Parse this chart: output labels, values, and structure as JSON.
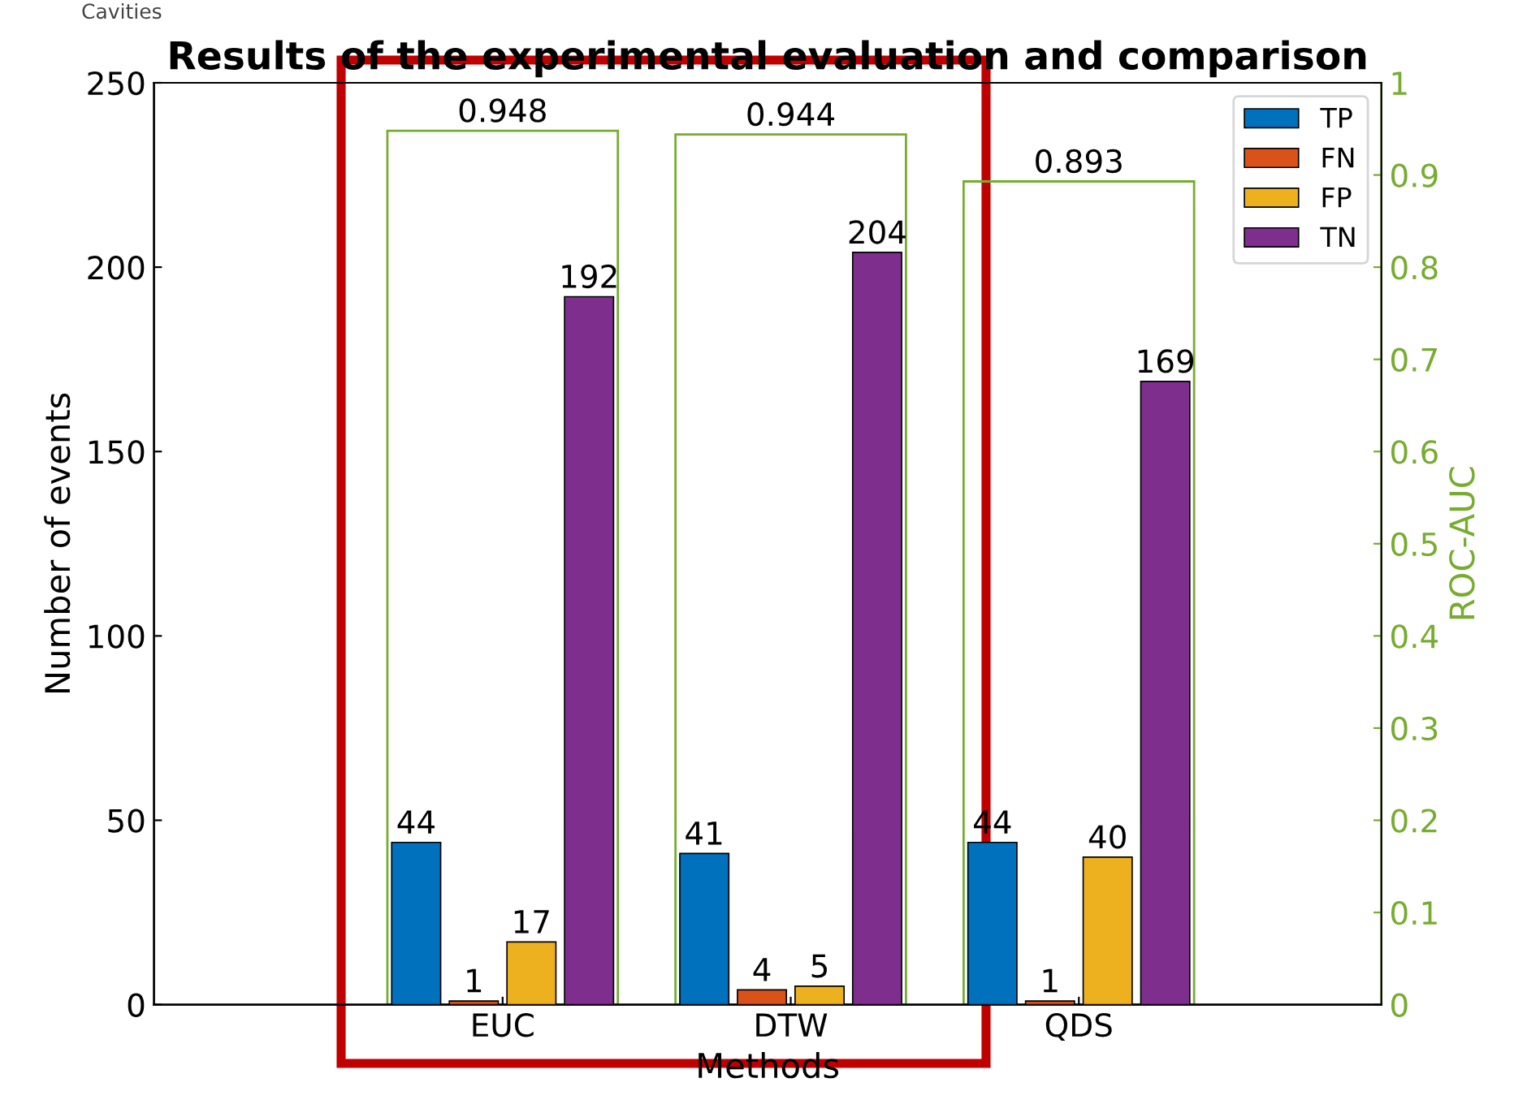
{
  "chart_data": {
    "type": "bar",
    "title": "Results of the experimental evaluation and comparison",
    "xlabel": "Methods",
    "ylabel": "Number of events",
    "y2label": "ROC-AUC",
    "annotations": [
      "Cavities"
    ],
    "categories": [
      "EUC",
      "DTW",
      "QDS"
    ],
    "series": [
      {
        "name": "TP",
        "color": "#0072bd",
        "values": [
          44,
          41,
          44
        ]
      },
      {
        "name": "FN",
        "color": "#d95319",
        "values": [
          1,
          4,
          1
        ]
      },
      {
        "name": "FP",
        "color": "#edb120",
        "values": [
          17,
          5,
          40
        ]
      },
      {
        "name": "TN",
        "color": "#7e2f8e",
        "values": [
          192,
          204,
          169
        ]
      },
      {
        "type": "bar",
        "axis": "y2",
        "color": "#77ac30",
        "values": [
          0.948,
          0.944,
          0.893
        ]
      }
    ],
    "ylim": [
      0,
      250
    ],
    "yticks": [
      0,
      50,
      100,
      150,
      200,
      250
    ],
    "y2lim": [
      0,
      1
    ],
    "y2ticks": [
      0,
      0.1,
      0.2,
      0.3,
      0.4,
      0.5,
      0.6,
      0.7,
      0.8,
      0.9,
      1
    ],
    "data_labels": true,
    "legend": "top right",
    "grid": false
  }
}
